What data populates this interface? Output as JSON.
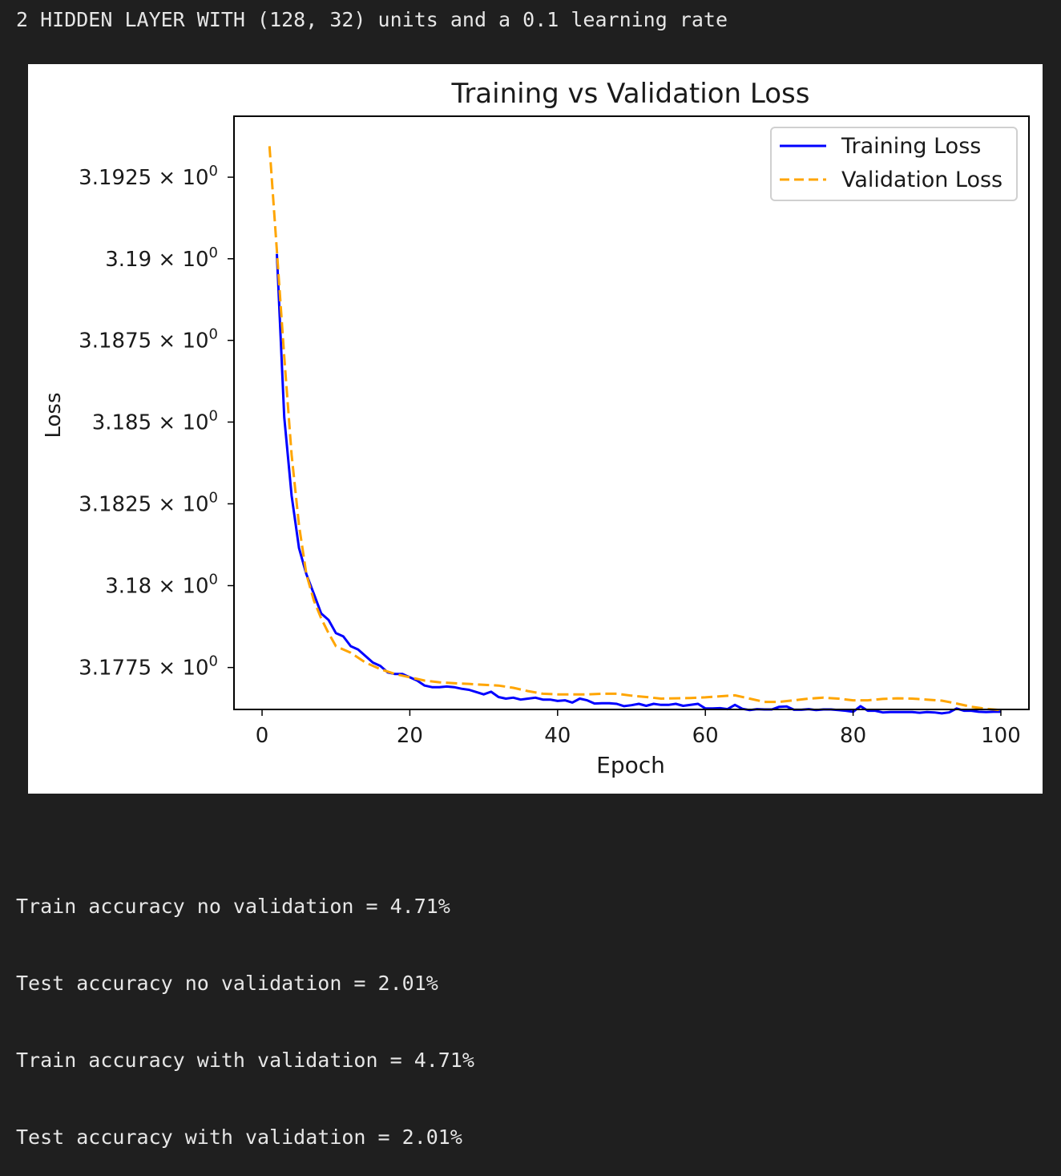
{
  "header": {
    "text": "2 HIDDEN LAYER WITH (128, 32) units and a 0.1 learning rate"
  },
  "chart_data": {
    "type": "line",
    "title": "Training vs Validation Loss",
    "xlabel": "Epoch",
    "ylabel": "Loss",
    "xlim": [
      -3.8,
      103.8
    ],
    "ylim": [
      3.17622,
      3.19437
    ],
    "y_scale": "log",
    "grid": false,
    "legend_position": "top-right",
    "xticks": [
      {
        "value": 0,
        "label": "0"
      },
      {
        "value": 20,
        "label": "20"
      },
      {
        "value": 40,
        "label": "40"
      },
      {
        "value": 60,
        "label": "60"
      },
      {
        "value": 80,
        "label": "80"
      },
      {
        "value": 100,
        "label": "100"
      }
    ],
    "yticks": [
      {
        "value": 3.1775,
        "mantissa": "3.1775",
        "times": "×",
        "base": "10",
        "exp": "0"
      },
      {
        "value": 3.18,
        "mantissa": "3.18",
        "times": "×",
        "base": "10",
        "exp": "0"
      },
      {
        "value": 3.1825,
        "mantissa": "3.1825",
        "times": "×",
        "base": "10",
        "exp": "0"
      },
      {
        "value": 3.185,
        "mantissa": "3.185",
        "times": "×",
        "base": "10",
        "exp": "0"
      },
      {
        "value": 3.1875,
        "mantissa": "3.1875",
        "times": "×",
        "base": "10",
        "exp": "0"
      },
      {
        "value": 3.19,
        "mantissa": "3.19",
        "times": "×",
        "base": "10",
        "exp": "0"
      },
      {
        "value": 3.1925,
        "mantissa": "3.1925",
        "times": "×",
        "base": "10",
        "exp": "0"
      }
    ],
    "series": [
      {
        "name": "Training Loss",
        "color": "#0000ff",
        "dash": "solid",
        "x": [
          2,
          3,
          4,
          5,
          6,
          7,
          8,
          9,
          10,
          11,
          12,
          13,
          14,
          15,
          16,
          17,
          18,
          19,
          20,
          21,
          22,
          23,
          24,
          25,
          26,
          27,
          28,
          29,
          30,
          31,
          32,
          33,
          34,
          35,
          36,
          37,
          38,
          39,
          40,
          41,
          42,
          43,
          44,
          45,
          46,
          47,
          48,
          49,
          50,
          51,
          52,
          53,
          54,
          55,
          56,
          57,
          58,
          59,
          60,
          61,
          62,
          63,
          64,
          65,
          66,
          67,
          68,
          69,
          70,
          71,
          72,
          73,
          74,
          75,
          76,
          77,
          78,
          79,
          80,
          81,
          82,
          83,
          84,
          85,
          86,
          87,
          88,
          89,
          90,
          91,
          92,
          93,
          94,
          95,
          96,
          97,
          98,
          99,
          100
        ],
        "y": [
          3.19015,
          3.18515,
          3.18275,
          3.18115,
          3.18035,
          3.17975,
          3.17915,
          3.17895,
          3.17855,
          3.17845,
          3.17815,
          3.17805,
          3.17785,
          3.17765,
          3.17755,
          3.17735,
          3.1773,
          3.1773,
          3.1772,
          3.1771,
          3.17695,
          3.1769,
          3.1769,
          3.17692,
          3.1769,
          3.17685,
          3.17682,
          3.17675,
          3.17668,
          3.17676,
          3.1766,
          3.17655,
          3.17658,
          3.17652,
          3.17655,
          3.17658,
          3.17652,
          3.17652,
          3.17648,
          3.1765,
          3.17643,
          3.17655,
          3.1765,
          3.1764,
          3.17641,
          3.17641,
          3.17639,
          3.17632,
          3.17635,
          3.17639,
          3.17633,
          3.17639,
          3.17636,
          3.17636,
          3.17639,
          3.17633,
          3.17636,
          3.17639,
          3.17625,
          3.17625,
          3.17626,
          3.17623,
          3.17636,
          3.17624,
          3.1762,
          3.17623,
          3.17622,
          3.17622,
          3.1763,
          3.17631,
          3.17621,
          3.17621,
          3.17623,
          3.1762,
          3.17622,
          3.17622,
          3.1762,
          3.17618,
          3.17615,
          3.17632,
          3.17618,
          3.17618,
          3.17613,
          3.17614,
          3.17614,
          3.17614,
          3.17614,
          3.17612,
          3.17614,
          3.17613,
          3.1761,
          3.17613,
          3.17625,
          3.17618,
          3.17618,
          3.17615,
          3.17614,
          3.17615,
          3.17615
        ]
      },
      {
        "name": "Validation Loss",
        "color": "#ffa500",
        "dash": "dashed",
        "x": [
          1,
          2,
          3,
          4,
          5,
          6,
          7,
          8,
          9,
          10,
          12,
          14,
          16,
          18,
          20,
          22,
          24,
          26,
          28,
          30,
          32,
          34,
          36,
          38,
          40,
          42,
          44,
          46,
          48,
          50,
          52,
          54,
          56,
          58,
          60,
          62,
          64,
          66,
          68,
          70,
          72,
          74,
          76,
          78,
          80,
          82,
          84,
          86,
          88,
          90,
          92,
          94,
          96,
          98,
          100
        ],
        "y": [
          3.19345,
          3.19025,
          3.187,
          3.184,
          3.18185,
          3.18035,
          3.17955,
          3.179,
          3.17855,
          3.17815,
          3.17795,
          3.17765,
          3.17745,
          3.1773,
          3.1772,
          3.1771,
          3.17705,
          3.17702,
          3.177,
          3.17697,
          3.17695,
          3.17688,
          3.17678,
          3.1767,
          3.17668,
          3.17668,
          3.17668,
          3.1767,
          3.1767,
          3.17664,
          3.1766,
          3.17655,
          3.17656,
          3.17657,
          3.17659,
          3.17662,
          3.17665,
          3.17655,
          3.17645,
          3.17645,
          3.1765,
          3.17655,
          3.17658,
          3.17655,
          3.1765,
          3.1765,
          3.17654,
          3.17656,
          3.17655,
          3.17652,
          3.17649,
          3.1764,
          3.1763,
          3.17624,
          3.1762
        ]
      }
    ]
  },
  "results": [
    "Train accuracy no validation = 4.71%",
    "Test accuracy no validation = 2.01%",
    "Train accuracy with validation = 4.71%",
    "Test accuracy with validation = 2.01%"
  ]
}
